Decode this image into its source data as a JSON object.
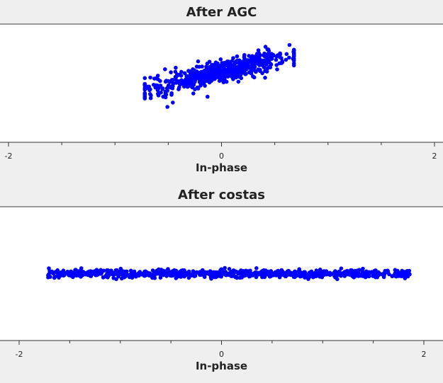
{
  "chart_data": [
    {
      "type": "scatter",
      "title": "After AGC",
      "xlabel": "In-phase",
      "xlim": [
        -2.02,
        2.02
      ],
      "ylim": [
        -1.0,
        1.0
      ],
      "xticks": [
        -2,
        0,
        2
      ],
      "xticklabels": [
        "-2",
        "0",
        "2"
      ],
      "grid": false,
      "series": [
        {
          "color": "#0000ff",
          "distribution": {
            "kind": "linear_cloud",
            "n": 700,
            "x_range": [
              -0.72,
              0.68
            ],
            "slope": 0.42,
            "intercept": 0.19,
            "y_spread": 0.09
          }
        }
      ]
    },
    {
      "type": "scatter",
      "title": "After costas",
      "xlabel": "In-phase",
      "xlim": [
        -2.02,
        2.02
      ],
      "ylim": [
        -1.0,
        1.0
      ],
      "xticks": [
        -2,
        0,
        2
      ],
      "xticklabels": [
        "-2",
        "0",
        "2"
      ],
      "grid": false,
      "series": [
        {
          "color": "#0000ff",
          "distribution": {
            "kind": "linear_cloud",
            "n": 800,
            "x_range": [
              -1.72,
              1.86
            ],
            "slope": 0.0,
            "intercept": 0.0,
            "y_spread": 0.03
          }
        }
      ]
    }
  ]
}
